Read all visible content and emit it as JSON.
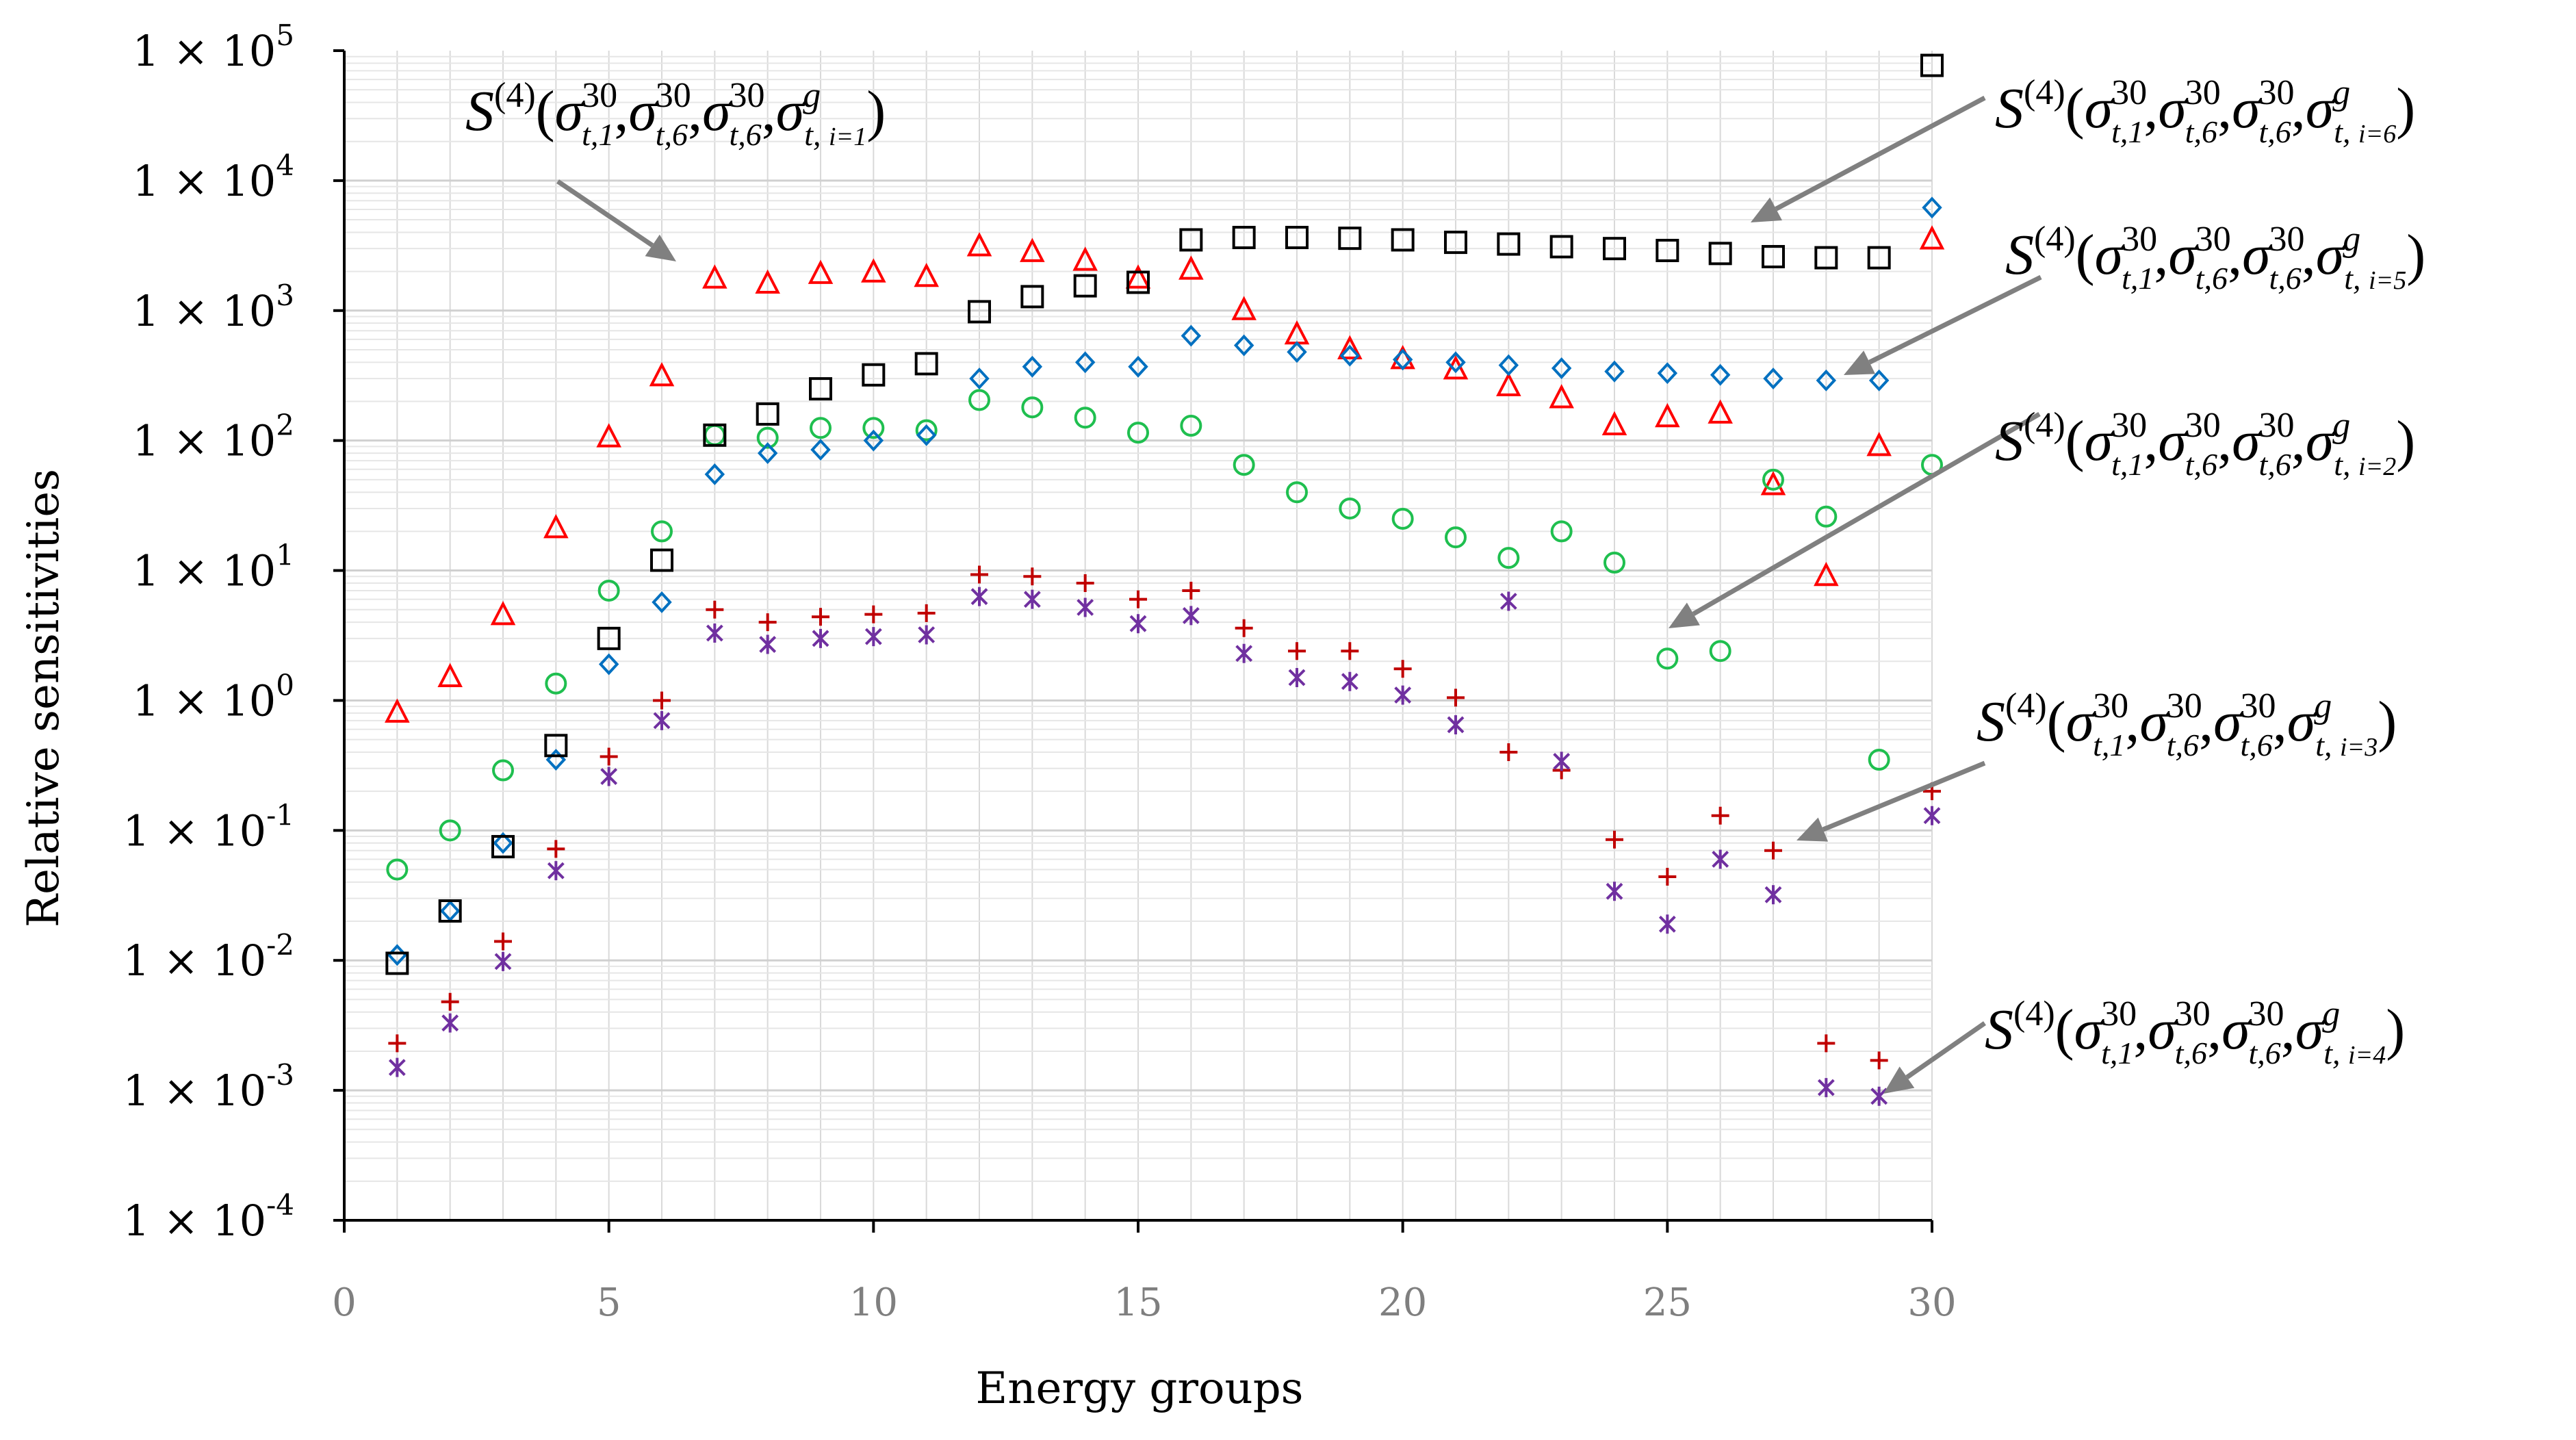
{
  "chart_data": {
    "type": "scatter",
    "title": "",
    "xlabel": "Energy groups",
    "ylabel": "Relative sensitivities",
    "xlim": [
      0,
      30
    ],
    "ylim": [
      0.0001,
      100000
    ],
    "yscale": "log",
    "x_ticks": [
      "0",
      "5",
      "10",
      "15",
      "20",
      "25",
      "30"
    ],
    "y_ticks": [
      {
        "mantissa": "1 × 10",
        "exp": "-4"
      },
      {
        "mantissa": "1 × 10",
        "exp": "-3"
      },
      {
        "mantissa": "1 × 10",
        "exp": "-2"
      },
      {
        "mantissa": "1 × 10",
        "exp": "-1"
      },
      {
        "mantissa": "1 × 10",
        "exp": "0"
      },
      {
        "mantissa": "1 × 10",
        "exp": "1"
      },
      {
        "mantissa": "1 × 10",
        "exp": "2"
      },
      {
        "mantissa": "1 × 10",
        "exp": "3"
      },
      {
        "mantissa": "1 × 10",
        "exp": "4"
      },
      {
        "mantissa": "1 × 10",
        "exp": "5"
      }
    ],
    "grid": true,
    "series": [
      {
        "name": "i=1",
        "marker": "triangle",
        "color": "#ff0000",
        "x": [
          1,
          2,
          3,
          4,
          5,
          6,
          7,
          8,
          9,
          10,
          11,
          12,
          13,
          14,
          15,
          16,
          17,
          18,
          19,
          20,
          21,
          22,
          23,
          24,
          25,
          26,
          27,
          28,
          29,
          30
        ],
        "y": [
          0.8,
          1.5,
          4.5,
          21,
          105,
          310,
          1750,
          1600,
          1900,
          1950,
          1800,
          3100,
          2800,
          2400,
          1750,
          2050,
          1000,
          650,
          500,
          420,
          350,
          260,
          210,
          130,
          150,
          160,
          45,
          9,
          90,
          3500
        ]
      },
      {
        "name": "i=2",
        "marker": "circle",
        "color": "#1fbf4f",
        "x": [
          1,
          2,
          3,
          4,
          5,
          6,
          7,
          8,
          9,
          10,
          11,
          12,
          13,
          14,
          15,
          16,
          17,
          18,
          19,
          20,
          21,
          22,
          23,
          24,
          25,
          26,
          27,
          28,
          29,
          30
        ],
        "y": [
          0.05,
          0.1,
          0.29,
          1.35,
          7,
          20,
          110,
          105,
          125,
          125,
          120,
          205,
          180,
          150,
          115,
          130,
          65,
          40,
          30,
          25,
          18,
          12.5,
          20,
          11.5,
          2.1,
          2.4,
          50,
          26,
          0.35,
          65
        ]
      },
      {
        "name": "i=3",
        "marker": "plus",
        "color": "#c00000",
        "x": [
          1,
          2,
          3,
          4,
          5,
          6,
          7,
          8,
          9,
          10,
          11,
          12,
          13,
          14,
          15,
          16,
          17,
          18,
          19,
          20,
          21,
          22,
          23,
          24,
          25,
          26,
          27,
          28,
          29,
          30
        ],
        "y": [
          0.0023,
          0.0048,
          0.014,
          0.072,
          0.37,
          1.0,
          5.0,
          4.0,
          4.4,
          4.6,
          4.7,
          9.3,
          9.0,
          8.0,
          6.0,
          7.0,
          3.6,
          2.4,
          2.4,
          1.75,
          1.05,
          0.4,
          0.29,
          0.085,
          0.044,
          0.13,
          0.07,
          0.0023,
          0.0017,
          0.2
        ]
      },
      {
        "name": "i=4",
        "marker": "star",
        "color": "#7030a0",
        "x": [
          1,
          2,
          3,
          4,
          5,
          6,
          7,
          8,
          9,
          10,
          11,
          12,
          13,
          14,
          15,
          16,
          17,
          18,
          19,
          20,
          21,
          22,
          23,
          24,
          25,
          26,
          27,
          28,
          29,
          30
        ],
        "y": [
          0.0015,
          0.0033,
          0.0098,
          0.049,
          0.26,
          0.7,
          3.3,
          2.7,
          3.0,
          3.1,
          3.2,
          6.3,
          6.0,
          5.2,
          3.9,
          4.5,
          2.3,
          1.5,
          1.4,
          1.1,
          0.65,
          5.8,
          0.34,
          0.034,
          0.019,
          0.06,
          0.032,
          0.00105,
          0.0009,
          0.13
        ]
      },
      {
        "name": "i=5",
        "marker": "diamond",
        "color": "#0070c0",
        "x": [
          1,
          2,
          3,
          4,
          5,
          6,
          7,
          8,
          9,
          10,
          11,
          12,
          13,
          14,
          15,
          16,
          17,
          18,
          19,
          20,
          21,
          22,
          23,
          24,
          25,
          26,
          27,
          28,
          29,
          30
        ],
        "y": [
          0.011,
          0.024,
          0.08,
          0.35,
          1.9,
          5.7,
          55,
          80,
          85,
          100,
          110,
          300,
          370,
          400,
          370,
          640,
          540,
          480,
          450,
          420,
          400,
          380,
          360,
          340,
          330,
          320,
          300,
          290,
          290,
          6200
        ]
      },
      {
        "name": "i=6",
        "marker": "square",
        "color": "#000000",
        "x": [
          1,
          2,
          3,
          4,
          5,
          6,
          7,
          8,
          9,
          10,
          11,
          12,
          13,
          14,
          15,
          16,
          17,
          18,
          19,
          20,
          21,
          22,
          23,
          24,
          25,
          26,
          27,
          28,
          29,
          30
        ],
        "y": [
          0.0095,
          0.024,
          0.075,
          0.45,
          3.0,
          12,
          110,
          160,
          250,
          320,
          390,
          980,
          1280,
          1550,
          1650,
          3500,
          3650,
          3650,
          3600,
          3500,
          3350,
          3250,
          3100,
          3000,
          2900,
          2750,
          2600,
          2550,
          2550,
          77000
        ]
      }
    ],
    "annotations": [
      {
        "series": "i=1",
        "s": "S",
        "order": "(4)",
        "sub": "i=1",
        "placement": "top-left"
      },
      {
        "series": "i=6",
        "s": "S",
        "order": "(4)",
        "sub": "i=6",
        "placement": "top-right"
      },
      {
        "series": "i=5",
        "s": "S",
        "order": "(4)",
        "sub": "i=5",
        "placement": "right"
      },
      {
        "series": "i=2",
        "s": "S",
        "order": "(4)",
        "sub": "i=2",
        "placement": "right"
      },
      {
        "series": "i=3",
        "s": "S",
        "order": "(4)",
        "sub": "i=3",
        "placement": "lower-right"
      },
      {
        "series": "i=4",
        "s": "S",
        "order": "(4)",
        "sub": "i=4",
        "placement": "bottom-right"
      }
    ],
    "annotation_parts": {
      "sigma": "σ",
      "t1": "t,1",
      "t6": "t,6",
      "tg": "t, ",
      "sup30": "30",
      "supg": "g"
    }
  }
}
